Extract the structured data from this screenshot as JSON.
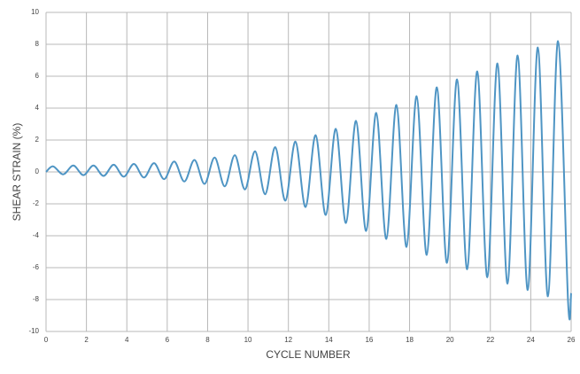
{
  "chart_data": {
    "type": "line",
    "xlabel": "CYCLE NUMBER",
    "ylabel": "SHEAR STRAIN (%)",
    "x": [
      0,
      0.35,
      0.85,
      1.35,
      1.85,
      2.35,
      2.85,
      3.35,
      3.85,
      4.35,
      4.85,
      5.35,
      5.85,
      6.35,
      6.85,
      7.35,
      7.85,
      8.35,
      8.85,
      9.35,
      9.85,
      10.35,
      10.85,
      11.35,
      11.85,
      12.35,
      12.85,
      13.35,
      13.85,
      14.35,
      14.85,
      15.35,
      15.85,
      16.35,
      16.85,
      17.35,
      17.85,
      18.35,
      18.85,
      19.35,
      19.85,
      20.35,
      20.85,
      21.35,
      21.85,
      22.35,
      22.85,
      23.35,
      23.85,
      24.35,
      24.85,
      25.35,
      25.85,
      26
    ],
    "series": [
      {
        "name": "Shear strain",
        "color": "#4f95c4",
        "values": [
          0,
          0.35,
          -0.15,
          0.4,
          -0.2,
          0.4,
          -0.25,
          0.45,
          -0.3,
          0.5,
          -0.35,
          0.55,
          -0.45,
          0.65,
          -0.6,
          0.75,
          -0.75,
          0.9,
          -0.9,
          1.05,
          -1.1,
          1.3,
          -1.4,
          1.55,
          -1.8,
          1.9,
          -2.2,
          2.3,
          -2.7,
          2.7,
          -3.2,
          3.2,
          -3.7,
          3.7,
          -4.2,
          4.2,
          -4.7,
          4.75,
          -5.2,
          5.3,
          -5.7,
          5.8,
          -6.1,
          6.3,
          -6.6,
          6.8,
          -7.0,
          7.3,
          -7.4,
          7.8,
          -7.8,
          8.2,
          -8.2,
          -7.6
        ]
      }
    ],
    "xlim": [
      0,
      26
    ],
    "xticks": [
      0,
      2,
      4,
      6,
      8,
      10,
      12,
      14,
      16,
      18,
      20,
      22,
      24,
      26
    ],
    "ylim": [
      -10,
      10
    ],
    "yticks": [
      -10,
      -8,
      -6,
      -4,
      -2,
      0,
      2,
      4,
      6,
      8,
      10
    ],
    "grid": true
  }
}
